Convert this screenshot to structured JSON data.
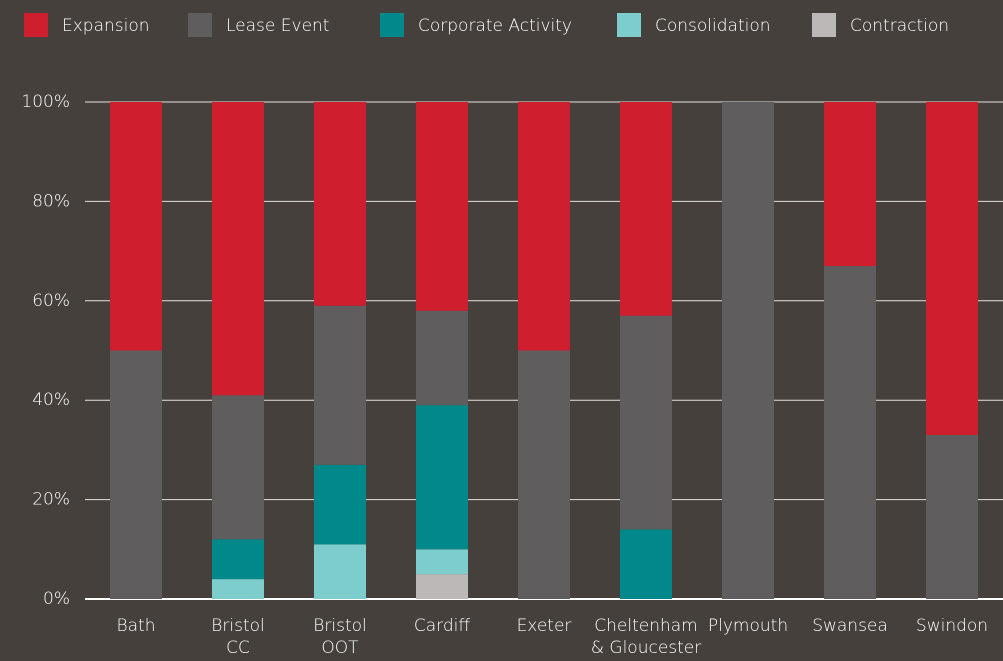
{
  "chart_data": {
    "type": "stacked_bar",
    "categories": [
      "Bath",
      "Bristol CC",
      "Bristol OOT",
      "Cardiff",
      "Exeter",
      "Cheltenham & Gloucester",
      "Plymouth",
      "Swansea",
      "Swindon"
    ],
    "series": [
      {
        "name": "Expansion",
        "color": "#cf1f2e",
        "values": [
          50,
          59,
          41,
          42,
          50,
          43,
          0,
          33,
          67
        ]
      },
      {
        "name": "Lease Event",
        "color": "#5f5d5e",
        "values": [
          50,
          29,
          32,
          19,
          50,
          43,
          100,
          67,
          33
        ]
      },
      {
        "name": "Corporate Activity",
        "color": "#00888a",
        "values": [
          0,
          8,
          16,
          29,
          0,
          14,
          0,
          0,
          0
        ]
      },
      {
        "name": "Consolidation",
        "color": "#7ecdcd",
        "values": [
          0,
          4,
          11,
          5,
          0,
          0,
          0,
          0,
          0
        ]
      },
      {
        "name": "Contraction",
        "color": "#bdb8b8",
        "values": [
          0,
          0,
          0,
          5,
          0,
          0,
          0,
          0,
          0
        ]
      }
    ],
    "ylim": [
      0,
      100
    ],
    "yticks": [
      {
        "value": 0,
        "label": "0%"
      },
      {
        "value": 20,
        "label": "20%"
      },
      {
        "value": 40,
        "label": "40%"
      },
      {
        "value": 60,
        "label": "60%"
      },
      {
        "value": 80,
        "label": "80%"
      },
      {
        "value": 100,
        "label": "100%"
      }
    ],
    "grid": true,
    "legend": "top"
  }
}
